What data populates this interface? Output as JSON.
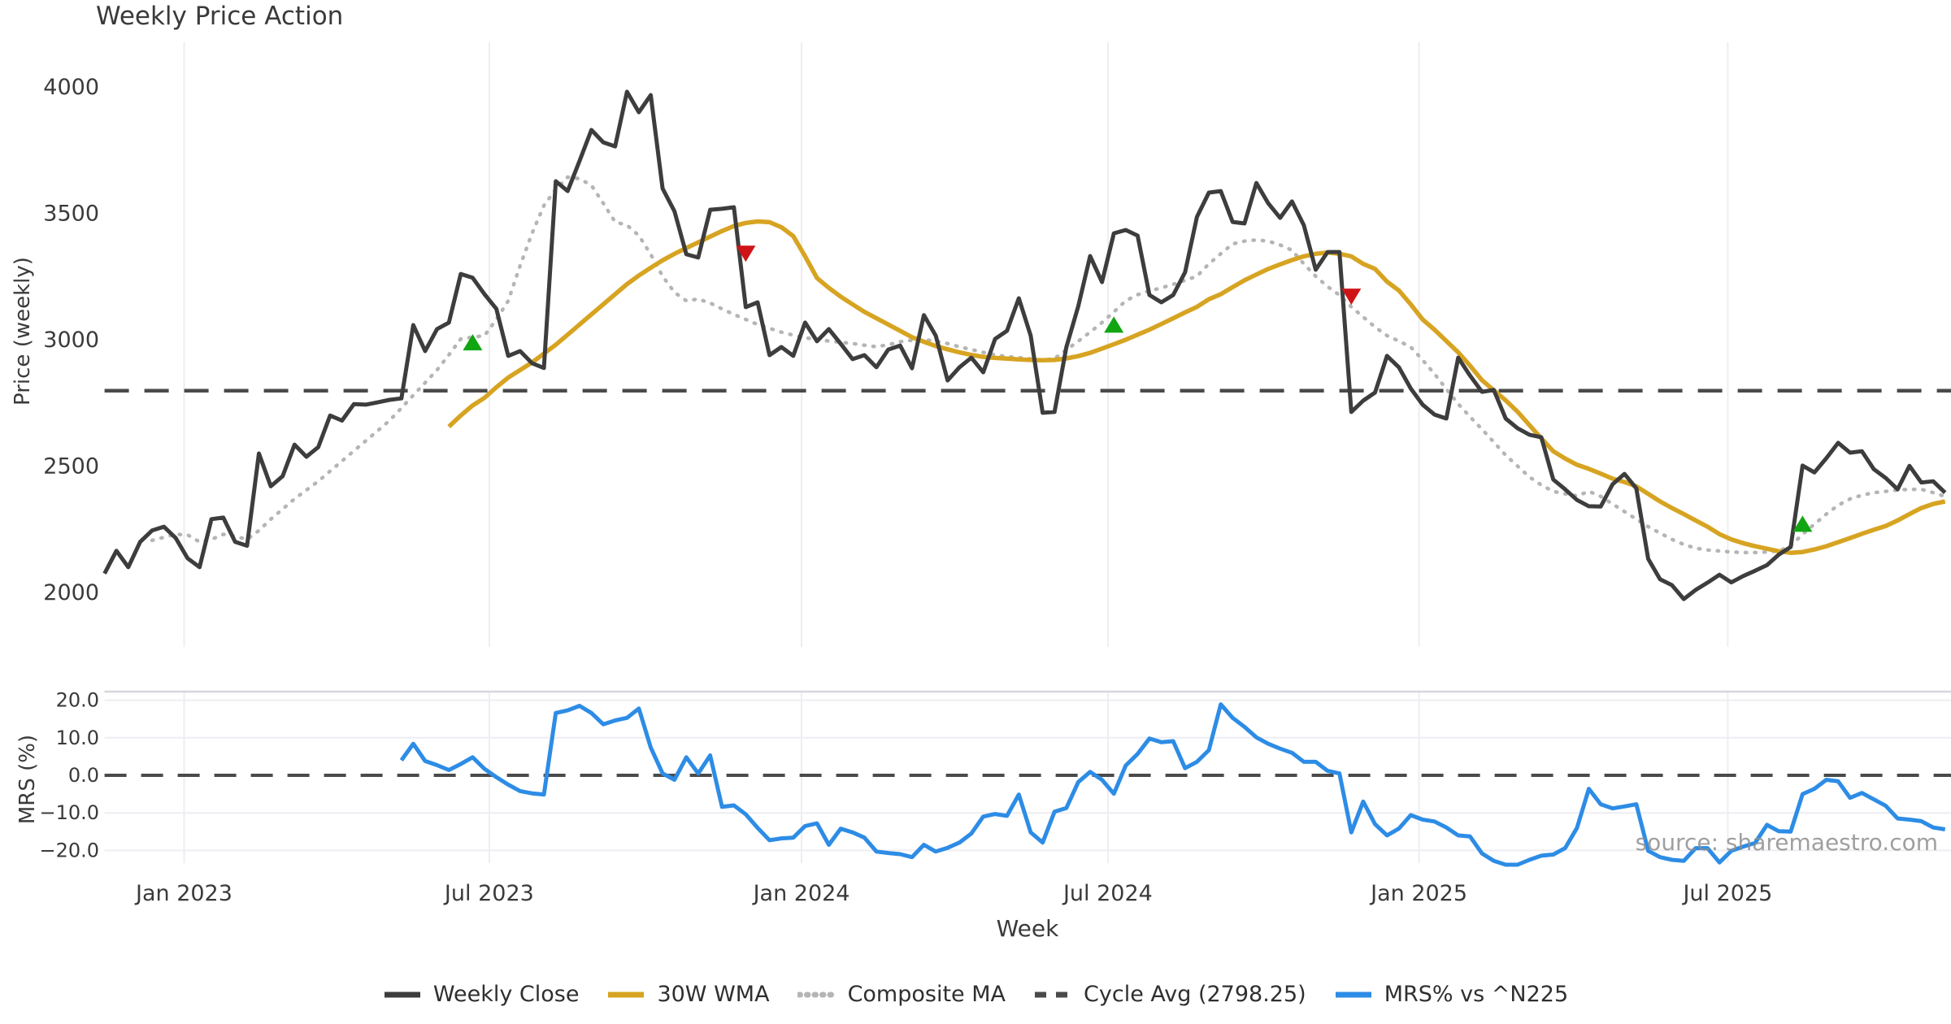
{
  "title": "Weekly Price Action",
  "watermark": "source: sharemaestro.com",
  "price_panel": {
    "ylabel": "Price (weekly)",
    "y_ticks": [
      "4000",
      "3500",
      "3000",
      "2500",
      "2000"
    ]
  },
  "mrs_panel": {
    "ylabel": "MRS (%)",
    "y_ticks": [
      "20.0",
      "10.0",
      "0.0",
      "−10.0",
      "−20.0"
    ]
  },
  "x_axis": {
    "label": "Week",
    "tick_labels": [
      "Jan 2023",
      "Jul 2023",
      "Jan 2024",
      "Jul 2024",
      "Jan 2025",
      "Jul 2025"
    ]
  },
  "legend": {
    "items": [
      {
        "label": "Weekly Close",
        "style": "solid",
        "color": "#3d3d3d"
      },
      {
        "label": "30W WMA",
        "style": "solid",
        "color": "#d7a422"
      },
      {
        "label": "Composite MA",
        "style": "dotted",
        "color": "#b5b5b5"
      },
      {
        "label": "Cycle Avg (2798.25)",
        "style": "dashed",
        "color": "#4a4a4a"
      },
      {
        "label": "MRS% vs ^N225",
        "style": "solid",
        "color": "#2d8ce5"
      }
    ]
  },
  "chart_data": [
    {
      "type": "line",
      "panel": "price",
      "title": "Weekly Price Action",
      "xlabel": "Week",
      "ylabel": "Price (weekly)",
      "ylim": [
        1770,
        4190
      ],
      "y_tick_values": [
        2000,
        2500,
        3000,
        3500,
        4000
      ],
      "x_ticks": [
        {
          "label": "Jan 2023",
          "week": 6.7
        },
        {
          "label": "Jul 2023",
          "week": 32.4
        },
        {
          "label": "Jan 2024",
          "week": 58.7
        },
        {
          "label": "Jul 2024",
          "week": 84.5
        },
        {
          "label": "Jan 2025",
          "week": 110.7
        },
        {
          "label": "Jul 2025",
          "week": 136.7
        }
      ],
      "cycle_avg": 2798.25,
      "series": [
        {
          "name": "Weekly Close",
          "start_week": 0,
          "values": [
            2075,
            2165,
            2100,
            2200,
            2245,
            2260,
            2215,
            2135,
            2100,
            2290,
            2296,
            2200,
            2185,
            2550,
            2420,
            2460,
            2585,
            2537,
            2575,
            2700,
            2680,
            2745,
            2743,
            2752,
            2762,
            2768,
            3058,
            2955,
            3042,
            3068,
            3260,
            3245,
            3180,
            3122,
            2936,
            2955,
            2907,
            2888,
            3627,
            3588,
            3707,
            3830,
            3781,
            3765,
            3981,
            3900,
            3968,
            3598,
            3508,
            3338,
            3325,
            3514,
            3518,
            3524,
            3129,
            3148,
            2939,
            2971,
            2936,
            3068,
            2994,
            3042,
            2984,
            2923,
            2939,
            2891,
            2961,
            2977,
            2887,
            3097,
            3016,
            2839,
            2891,
            2929,
            2871,
            3003,
            3035,
            3164,
            3016,
            2711,
            2714,
            2971,
            3132,
            3331,
            3228,
            3421,
            3434,
            3412,
            3177,
            3148,
            3177,
            3267,
            3486,
            3582,
            3588,
            3466,
            3460,
            3620,
            3540,
            3482,
            3547,
            3453,
            3277,
            3347,
            3347,
            2714,
            2759,
            2791,
            2936,
            2891,
            2807,
            2743,
            2704,
            2688,
            2929,
            2858,
            2794,
            2801,
            2688,
            2650,
            2624,
            2614,
            2447,
            2408,
            2366,
            2341,
            2340,
            2428,
            2469,
            2412,
            2133,
            2052,
            2029,
            1974,
            2010,
            2039,
            2070,
            2040,
            2065,
            2086,
            2108,
            2150,
            2180,
            2502,
            2475,
            2531,
            2592,
            2553,
            2559,
            2488,
            2453,
            2408,
            2501,
            2435,
            2440,
            2395
          ]
        },
        {
          "name": "30W WMA",
          "start_week": 29,
          "values": [
            2656,
            2700,
            2740,
            2770,
            2812,
            2850,
            2880,
            2910,
            2945,
            2980,
            3020,
            3060,
            3100,
            3140,
            3180,
            3220,
            3254,
            3285,
            3314,
            3340,
            3363,
            3385,
            3408,
            3430,
            3450,
            3462,
            3468,
            3465,
            3445,
            3410,
            3330,
            3244,
            3205,
            3170,
            3140,
            3110,
            3085,
            3060,
            3035,
            3010,
            2992,
            2975,
            2962,
            2950,
            2940,
            2932,
            2928,
            2925,
            2922,
            2920,
            2919,
            2920,
            2926,
            2935,
            2948,
            2965,
            2982,
            3000,
            3020,
            3040,
            3062,
            3085,
            3108,
            3130,
            3160,
            3180,
            3208,
            3235,
            3258,
            3280,
            3298,
            3315,
            3330,
            3340,
            3345,
            3340,
            3330,
            3300,
            3280,
            3230,
            3195,
            3140,
            3080,
            3040,
            2995,
            2950,
            2897,
            2840,
            2800,
            2760,
            2715,
            2662,
            2610,
            2559,
            2530,
            2505,
            2489,
            2470,
            2450,
            2437,
            2420,
            2390,
            2360,
            2334,
            2310,
            2285,
            2260,
            2231,
            2210,
            2195,
            2183,
            2173,
            2163,
            2157,
            2160,
            2170,
            2183,
            2199,
            2215,
            2232,
            2248,
            2263,
            2285,
            2310,
            2334,
            2350,
            2360
          ]
        },
        {
          "name": "Composite MA",
          "start_week": 4,
          "values": [
            2206,
            2218,
            2230,
            2228,
            2200,
            2210,
            2230,
            2222,
            2210,
            2245,
            2290,
            2330,
            2370,
            2405,
            2440,
            2480,
            2520,
            2560,
            2600,
            2640,
            2680,
            2730,
            2780,
            2830,
            2880,
            2940,
            3003,
            3010,
            3016,
            3080,
            3154,
            3293,
            3421,
            3531,
            3595,
            3643,
            3637,
            3611,
            3540,
            3466,
            3453,
            3412,
            3338,
            3251,
            3187,
            3154,
            3161,
            3145,
            3122,
            3100,
            3080,
            3060,
            3045,
            3030,
            3018,
            3008,
            3000,
            2995,
            2990,
            2985,
            2978,
            2972,
            2980,
            2992,
            2998,
            3000,
            2995,
            2985,
            2972,
            2961,
            2950,
            2940,
            2933,
            2929,
            2924,
            2919,
            2925,
            2960,
            2994,
            3030,
            3068,
            3110,
            3154,
            3178,
            3193,
            3205,
            3219,
            3235,
            3251,
            3300,
            3340,
            3379,
            3390,
            3395,
            3390,
            3375,
            3354,
            3300,
            3251,
            3210,
            3177,
            3130,
            3090,
            3050,
            3016,
            2995,
            2971,
            2920,
            2865,
            2805,
            2746,
            2695,
            2646,
            2595,
            2543,
            2500,
            2457,
            2425,
            2400,
            2390,
            2382,
            2400,
            2380,
            2350,
            2320,
            2290,
            2260,
            2235,
            2210,
            2190,
            2175,
            2168,
            2164,
            2160,
            2158,
            2158,
            2160,
            2164,
            2185,
            2230,
            2270,
            2310,
            2345,
            2370,
            2385,
            2395,
            2400,
            2405,
            2408,
            2408,
            2395,
            2380
          ]
        }
      ],
      "markers": [
        {
          "week": 31,
          "type": "buy",
          "price": 2990,
          "color": "#12a512"
        },
        {
          "week": 54,
          "type": "sell",
          "price": 3340,
          "color": "#cf1418"
        },
        {
          "week": 85,
          "type": "buy",
          "price": 3060,
          "color": "#12a512"
        },
        {
          "week": 105,
          "type": "sell",
          "price": 3170,
          "color": "#cf1418"
        },
        {
          "week": 143,
          "type": "buy",
          "price": 2272,
          "color": "#12a512"
        }
      ]
    },
    {
      "type": "line",
      "panel": "mrs",
      "ylabel": "MRS (%)",
      "ylim": [
        -23.4,
        22.3
      ],
      "y_tick_values": [
        -20,
        -10,
        0,
        10,
        20
      ],
      "zero_line": 0,
      "series": [
        {
          "name": "MRS% vs ^N225",
          "start_week": 25,
          "values": [
            4.0,
            8.4,
            3.8,
            2.7,
            1.4,
            3.0,
            4.8,
            1.7,
            -0.5,
            -2.5,
            -4.2,
            -4.8,
            -5.1,
            16.6,
            17.3,
            18.5,
            16.6,
            13.6,
            14.6,
            15.3,
            17.8,
            7.4,
            0.5,
            -1.2,
            4.8,
            0.5,
            5.3,
            -8.4,
            -8.0,
            -10.4,
            -14.0,
            -17.3,
            -16.8,
            -16.6,
            -13.5,
            -12.8,
            -18.5,
            -14.2,
            -15.2,
            -16.6,
            -20.3,
            -20.7,
            -21.0,
            -21.8,
            -18.5,
            -20.3,
            -19.3,
            -17.9,
            -15.5,
            -11.0,
            -10.3,
            -10.8,
            -5.1,
            -15.2,
            -17.9,
            -9.7,
            -8.7,
            -1.8,
            0.9,
            -1.2,
            -4.9,
            2.6,
            5.7,
            9.8,
            8.8,
            9.1,
            1.9,
            3.6,
            6.7,
            18.9,
            15.3,
            12.9,
            10.1,
            8.4,
            7.1,
            6.0,
            3.6,
            3.6,
            1.2,
            0.5,
            -15.2,
            -7.0,
            -13.0,
            -16.0,
            -14.2,
            -10.6,
            -11.8,
            -12.3,
            -13.9,
            -16.0,
            -16.3,
            -20.8,
            -22.8,
            -23.8,
            -23.8,
            -22.5,
            -21.4,
            -21.1,
            -19.4,
            -14.0,
            -3.6,
            -7.7,
            -8.8,
            -8.3,
            -7.7,
            -20.1,
            -21.8,
            -22.5,
            -22.8,
            -19.4,
            -19.4,
            -23.2,
            -20.1,
            -19.0,
            -18.0,
            -13.2,
            -14.9,
            -15.0,
            -5.0,
            -3.6,
            -1.2,
            -1.6,
            -6.0,
            -4.7,
            -6.4,
            -8.1,
            -11.5,
            -11.8,
            -12.2,
            -13.9,
            -14.4
          ]
        }
      ]
    }
  ],
  "colors": {
    "close": "#3d3d3d",
    "wma": "#d7a422",
    "composite": "#b5b5b5",
    "cycle_avg": "#4a4a4a",
    "mrs": "#2d8ce5",
    "buy_marker": "#12a512",
    "sell_marker": "#cf1418",
    "gridline": "#ededf3",
    "panel_border": "#d6d6de",
    "tick_text": "#3a3a3a"
  }
}
